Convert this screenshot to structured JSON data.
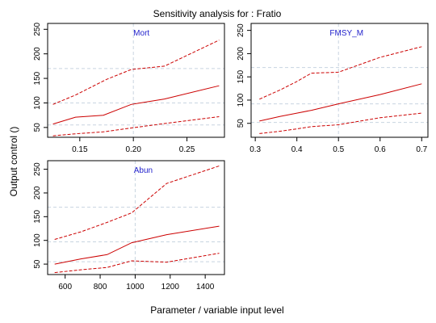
{
  "figure": {
    "title": "Sensitivity analysis for : Fratio",
    "xlabel": "Parameter / variable input level",
    "ylabel": "Output control ()"
  },
  "colors": {
    "series": "#cc0000",
    "panel_label": "#2222cc",
    "reference": "#c8d4e0",
    "axis": "#000000"
  },
  "chart_data": [
    {
      "type": "line",
      "panel_label": "Mort",
      "xlim": [
        0.12,
        0.285
      ],
      "ylim": [
        30,
        262
      ],
      "x_ticks": [
        0.15,
        0.2,
        0.25
      ],
      "x_tick_labels": [
        "0.15",
        "0.20",
        "0.25"
      ],
      "y_ticks": [
        50,
        100,
        150,
        200,
        250
      ],
      "y_tick_labels": [
        "50",
        "100",
        "150",
        "200",
        "250"
      ],
      "ref_x": 0.2,
      "ref_y": [
        55,
        100,
        170
      ],
      "series": [
        {
          "line": "dashed",
          "points": [
            [
              0.125,
              97
            ],
            [
              0.146,
              116
            ],
            [
              0.175,
              148
            ],
            [
              0.198,
              168
            ],
            [
              0.229,
              175
            ],
            [
              0.28,
              228
            ]
          ]
        },
        {
          "line": "solid",
          "points": [
            [
              0.125,
              57
            ],
            [
              0.146,
              71
            ],
            [
              0.172,
              75
            ],
            [
              0.198,
              97
            ],
            [
              0.229,
              108
            ],
            [
              0.28,
              135
            ]
          ]
        },
        {
          "line": "dashed",
          "points": [
            [
              0.125,
              33
            ],
            [
              0.146,
              37
            ],
            [
              0.172,
              41
            ],
            [
              0.198,
              49
            ],
            [
              0.229,
              58
            ],
            [
              0.28,
              72
            ]
          ]
        }
      ]
    },
    {
      "type": "line",
      "panel_label": "FMSY_M",
      "xlim": [
        0.29,
        0.715
      ],
      "ylim": [
        20,
        265
      ],
      "x_ticks": [
        0.3,
        0.4,
        0.5,
        0.6,
        0.7
      ],
      "x_tick_labels": [
        "0.3",
        "0.4",
        "0.5",
        "0.6",
        "0.7"
      ],
      "y_ticks": [
        50,
        100,
        150,
        200,
        250
      ],
      "y_tick_labels": [
        "50",
        "100",
        "150",
        "200",
        "250"
      ],
      "ref_x": 0.5,
      "ref_y": [
        52,
        92,
        170
      ],
      "series": [
        {
          "line": "dashed",
          "points": [
            [
              0.31,
              102
            ],
            [
              0.36,
              122
            ],
            [
              0.4,
              140
            ],
            [
              0.435,
              158
            ],
            [
              0.5,
              160
            ],
            [
              0.6,
              192
            ],
            [
              0.7,
              215
            ]
          ]
        },
        {
          "line": "solid",
          "points": [
            [
              0.31,
              55
            ],
            [
              0.36,
              65
            ],
            [
              0.4,
              72
            ],
            [
              0.435,
              78
            ],
            [
              0.5,
              92
            ],
            [
              0.6,
              112
            ],
            [
              0.7,
              135
            ]
          ]
        },
        {
          "line": "dashed",
          "points": [
            [
              0.31,
              28
            ],
            [
              0.36,
              33
            ],
            [
              0.4,
              38
            ],
            [
              0.435,
              43
            ],
            [
              0.5,
              47
            ],
            [
              0.6,
              62
            ],
            [
              0.7,
              72
            ]
          ]
        }
      ]
    },
    {
      "type": "line",
      "panel_label": "Abun",
      "xlim": [
        500,
        1510
      ],
      "ylim": [
        28,
        268
      ],
      "x_ticks": [
        600,
        800,
        1000,
        1200,
        1400
      ],
      "x_tick_labels": [
        "600",
        "800",
        "1000",
        "1200",
        "1400"
      ],
      "y_ticks": [
        50,
        100,
        150,
        200,
        250
      ],
      "y_tick_labels": [
        "50",
        "100",
        "150",
        "200",
        "250"
      ],
      "ref_x": 1000,
      "ref_y": [
        55,
        97,
        170
      ],
      "series": [
        {
          "line": "dashed",
          "points": [
            [
              540,
              102
            ],
            [
              690,
              118
            ],
            [
              840,
              138
            ],
            [
              980,
              158
            ],
            [
              1180,
              220
            ],
            [
              1480,
              257
            ]
          ]
        },
        {
          "line": "solid",
          "points": [
            [
              540,
              50
            ],
            [
              690,
              61
            ],
            [
              840,
              70
            ],
            [
              980,
              95
            ],
            [
              1180,
              112
            ],
            [
              1480,
              130
            ]
          ]
        },
        {
          "line": "dashed",
          "points": [
            [
              540,
              32
            ],
            [
              690,
              38
            ],
            [
              840,
              43
            ],
            [
              980,
              57
            ],
            [
              1180,
              54
            ],
            [
              1480,
              73
            ]
          ]
        }
      ]
    }
  ]
}
